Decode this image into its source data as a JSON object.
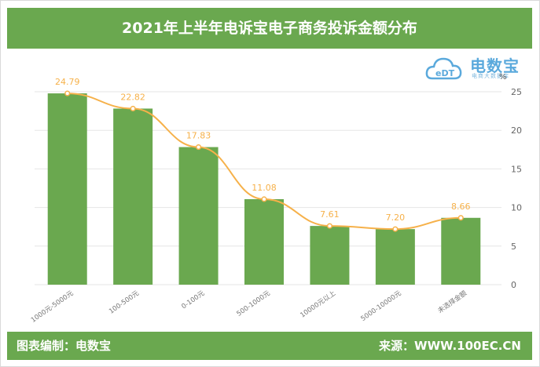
{
  "header": {
    "title": "2021年上半年电诉宝电子商务投诉金额分布"
  },
  "footer": {
    "left": "图表编制：电数宝",
    "right": "来源：WWW.100EC.CN"
  },
  "logo": {
    "brand": "电数宝",
    "tagline": "电商大数据库",
    "mark": "eDT"
  },
  "colors": {
    "green": "#6aa84f",
    "bar": "#6aa84f",
    "line": "#f6b14a",
    "logo": "#5aa9dc"
  },
  "chart_data": {
    "type": "bar",
    "categories": [
      "1000元-5000元",
      "100-500元",
      "0-100元",
      "500-1000元",
      "10000元以上",
      "5000-10000元",
      "未选择金额"
    ],
    "values": [
      24.79,
      22.82,
      17.83,
      11.08,
      7.61,
      7.2,
      8.66
    ],
    "labels": [
      "24.79",
      "22.82",
      "17.83",
      "11.08",
      "7.61",
      "7.20",
      "8.66"
    ],
    "overlay_line": true,
    "unit": "%",
    "ylim": [
      0,
      25
    ],
    "yticks": [
      "0",
      "5",
      "10",
      "15",
      "20",
      "25"
    ],
    "y_axis_side": "right",
    "grid": true
  }
}
